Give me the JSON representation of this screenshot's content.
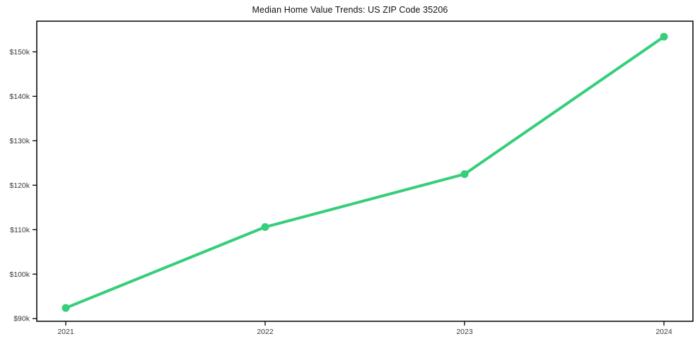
{
  "colors": {
    "series_green": "#35ce7a",
    "axis_color": "#000000",
    "tick_label_color": "#3c3c3c",
    "title_color": "#111111",
    "background": "#ffffff"
  },
  "chart_data": {
    "type": "line",
    "title": "Median Home Value Trends: US ZIP Code 35206",
    "x": [
      "2021",
      "2022",
      "2023",
      "2024"
    ],
    "series": [
      {
        "name": "Median Home Value",
        "values": [
          92400,
          110600,
          122500,
          153400
        ],
        "color": "#35ce7a",
        "line_width": 4,
        "marker": "circle",
        "marker_radius": 5.5
      }
    ],
    "xlabel": "",
    "ylabel": "",
    "ylim": [
      89400,
      156900
    ],
    "yticks": [
      90000,
      100000,
      110000,
      120000,
      130000,
      140000,
      150000
    ],
    "ytick_labels": [
      "$90k",
      "$100k",
      "$110k",
      "$120k",
      "$130k",
      "$140k",
      "$150k"
    ],
    "grid": false,
    "legend_position": "none",
    "frame": "box"
  }
}
